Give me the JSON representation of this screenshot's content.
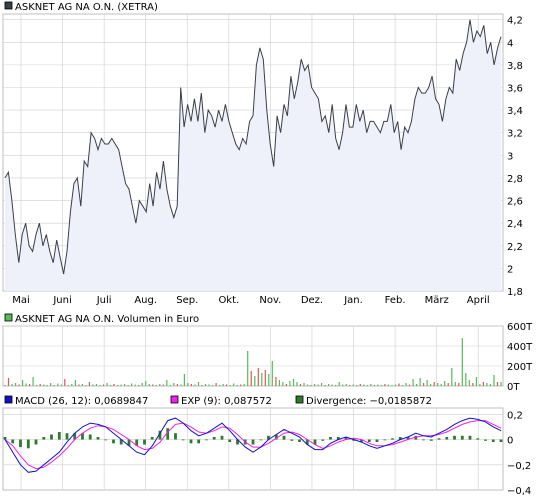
{
  "price_panel": {
    "legend_label": "ASKNET AG NA O.N. (XETRA)",
    "legend_color": "#3a3f4a"
  },
  "volume_panel": {
    "legend_label": "ASKNET AG NA O.N. Volumen in Euro",
    "legend_color": "#55bb55"
  },
  "macd_panel": {
    "legends": [
      {
        "label": "MACD (26, 12): 0,0689847",
        "color": "#1111cc"
      },
      {
        "label": "EXP (9): 0,087572",
        "color": "#ee22ee"
      },
      {
        "label": "Divergence: −0,0185872",
        "color": "#2d7a2d"
      }
    ]
  },
  "colors": {
    "price_line": "#3a3f4a",
    "price_fill": "#eef0fa",
    "grid": "#cfcfcf",
    "vol_up": "#55bb55",
    "vol_down": "#dd5555",
    "macd": "#1111cc",
    "exp": "#ee22ee",
    "divergence": "#2d7a2d"
  },
  "chart_data": [
    {
      "type": "area",
      "title": "ASKNET AG NA O.N. (XETRA)",
      "x_labels": [
        "Mai",
        "Juni",
        "Juli",
        "Aug.",
        "Sep.",
        "Okt.",
        "Nov.",
        "Dez.",
        "Jan.",
        "Feb.",
        "März",
        "April"
      ],
      "y_ticks": [
        "1,8",
        "2",
        "2,2",
        "2,4",
        "2,6",
        "2,8",
        "3",
        "3,2",
        "3,4",
        "3,6",
        "3,8",
        "4",
        "4,2"
      ],
      "ylim": [
        1.8,
        4.25
      ],
      "grid": true,
      "series": [
        {
          "values": [
            2.8,
            2.85,
            2.6,
            2.3,
            2.05,
            2.3,
            2.4,
            2.2,
            2.15,
            2.3,
            2.4,
            2.2,
            2.3,
            2.15,
            2.05,
            2.25,
            2.1,
            1.95,
            2.15,
            2.5,
            2.75,
            2.8,
            2.55,
            2.95,
            2.9,
            3.2,
            3.15,
            3.05,
            3.15,
            3.1,
            3.1,
            3.15,
            3.1,
            3.05,
            2.9,
            2.75,
            2.7,
            2.55,
            2.4,
            2.6,
            2.55,
            2.5,
            2.75,
            2.55,
            2.85,
            2.7,
            2.95,
            2.7,
            2.55,
            2.45,
            2.55,
            3.6,
            3.25,
            3.45,
            3.3,
            3.5,
            3.3,
            3.55,
            3.2,
            3.4,
            3.35,
            3.25,
            3.4,
            3.3,
            3.45,
            3.3,
            3.2,
            3.1,
            3.05,
            3.15,
            3.1,
            3.3,
            3.35,
            3.8,
            3.95,
            3.85,
            3.4,
            3.1,
            2.9,
            3.35,
            3.2,
            3.45,
            3.35,
            3.7,
            3.5,
            3.65,
            3.85,
            3.75,
            3.8,
            3.6,
            3.55,
            3.5,
            3.3,
            3.35,
            3.2,
            3.45,
            3.15,
            3.05,
            3.2,
            3.45,
            3.25,
            3.25,
            3.45,
            3.3,
            3.4,
            3.2,
            3.3,
            3.3,
            3.25,
            3.2,
            3.3,
            3.3,
            3.45,
            3.2,
            3.3,
            3.05,
            3.25,
            3.2,
            3.3,
            3.5,
            3.6,
            3.55,
            3.55,
            3.6,
            3.7,
            3.5,
            3.45,
            3.3,
            3.5,
            3.6,
            3.55,
            3.85,
            3.75,
            3.9,
            4.0,
            4.2,
            4.0,
            4.1,
            4.05,
            4.15,
            3.9,
            4.0,
            3.8,
            3.95,
            4.05
          ]
        }
      ]
    },
    {
      "type": "bar",
      "title": "ASKNET AG NA O.N. Volumen in Euro",
      "y_ticks": [
        "0T",
        "200T",
        "400T",
        "600T"
      ],
      "ylim": [
        0,
        600000
      ],
      "grid": true,
      "series": [
        {
          "name": "Volumen",
          "values": [
            10000,
            80000,
            20000,
            30000,
            15000,
            60000,
            25000,
            20000,
            90000,
            10000,
            20000,
            15000,
            10000,
            30000,
            10000,
            25000,
            15000,
            70000,
            10000,
            20000,
            60000,
            15000,
            20000,
            10000,
            40000,
            15000,
            20000,
            10000,
            15000,
            30000,
            10000,
            20000,
            10000,
            15000,
            20000,
            10000,
            25000,
            15000,
            10000,
            30000,
            50000,
            20000,
            15000,
            10000,
            20000,
            15000,
            60000,
            10000,
            30000,
            20000,
            15000,
            120000,
            30000,
            20000,
            15000,
            40000,
            10000,
            20000,
            15000,
            10000,
            30000,
            10000,
            20000,
            15000,
            10000,
            25000,
            10000,
            15000,
            20000,
            350000,
            150000,
            100000,
            180000,
            130000,
            160000,
            120000,
            250000,
            90000,
            60000,
            40000,
            20000,
            50000,
            70000,
            40000,
            20000,
            30000,
            15000,
            10000,
            20000,
            15000,
            30000,
            10000,
            20000,
            15000,
            10000,
            40000,
            15000,
            20000,
            10000,
            15000,
            10000,
            20000,
            15000,
            10000,
            20000,
            10000,
            15000,
            10000,
            20000,
            15000,
            10000,
            15000,
            25000,
            10000,
            30000,
            15000,
            70000,
            20000,
            80000,
            30000,
            60000,
            20000,
            40000,
            30000,
            20000,
            50000,
            30000,
            180000,
            40000,
            30000,
            480000,
            130000,
            60000,
            30000,
            90000,
            20000,
            40000,
            30000,
            20000,
            110000,
            40000,
            40000
          ],
          "directions": [
            1,
            -1,
            1,
            1,
            -1,
            1,
            1,
            -1,
            1,
            1,
            -1,
            1,
            1,
            1,
            -1,
            1,
            1,
            -1,
            1,
            1,
            1,
            -1,
            1,
            1,
            -1,
            1,
            1,
            1,
            -1,
            1,
            1,
            -1,
            1,
            1,
            1,
            -1,
            1,
            1,
            -1,
            1,
            1,
            1,
            -1,
            1,
            1,
            -1,
            1,
            1,
            1,
            -1,
            1,
            1,
            1,
            -1,
            1,
            1,
            -1,
            1,
            1,
            1,
            -1,
            1,
            1,
            -1,
            1,
            1,
            1,
            -1,
            1,
            1,
            -1,
            1,
            -1,
            1,
            -1,
            1,
            1,
            -1,
            1,
            1,
            -1,
            1,
            1,
            1,
            -1,
            1,
            1,
            -1,
            1,
            1,
            1,
            -1,
            1,
            1,
            -1,
            1,
            1,
            1,
            -1,
            1,
            1,
            -1,
            1,
            1,
            1,
            -1,
            1,
            1,
            -1,
            1,
            1,
            1,
            -1,
            1,
            1,
            -1,
            1,
            1,
            1,
            -1,
            1,
            1,
            -1,
            1,
            1,
            1,
            -1,
            1,
            1,
            -1,
            1,
            1,
            1,
            -1,
            1,
            1,
            -1,
            1,
            1,
            1,
            -1,
            1
          ]
        }
      ]
    },
    {
      "type": "line",
      "title": "MACD",
      "y_ticks": [
        "−0,4",
        "−0,2",
        "0",
        "0,2"
      ],
      "ylim": [
        -0.4,
        0.25
      ],
      "grid": true,
      "series": [
        {
          "name": "MACD (26, 12): 0,0689847",
          "values": [
            0.0,
            -0.1,
            -0.2,
            -0.26,
            -0.25,
            -0.2,
            -0.15,
            -0.1,
            -0.02,
            0.05,
            0.1,
            0.13,
            0.12,
            0.1,
            0.05,
            0.0,
            -0.05,
            -0.1,
            -0.12,
            -0.05,
            0.05,
            0.15,
            0.17,
            0.13,
            0.07,
            0.03,
            0.05,
            0.09,
            0.13,
            0.07,
            0.0,
            -0.06,
            -0.1,
            -0.06,
            0.0,
            0.04,
            0.08,
            0.05,
            0.02,
            -0.04,
            -0.08,
            -0.08,
            -0.03,
            0.0,
            0.02,
            0.0,
            -0.02,
            -0.05,
            -0.07,
            -0.05,
            -0.03,
            0.0,
            0.02,
            0.05,
            0.03,
            0.02,
            0.05,
            0.08,
            0.12,
            0.15,
            0.17,
            0.16,
            0.14,
            0.1,
            0.07
          ]
        },
        {
          "name": "EXP (9): 0,087572",
          "values": [
            0.0,
            -0.05,
            -0.13,
            -0.2,
            -0.23,
            -0.22,
            -0.18,
            -0.13,
            -0.07,
            0.0,
            0.05,
            0.09,
            0.11,
            0.1,
            0.08,
            0.04,
            0.0,
            -0.05,
            -0.08,
            -0.07,
            -0.02,
            0.06,
            0.12,
            0.13,
            0.1,
            0.06,
            0.05,
            0.07,
            0.1,
            0.09,
            0.04,
            -0.02,
            -0.06,
            -0.06,
            -0.03,
            0.01,
            0.05,
            0.06,
            0.04,
            0.0,
            -0.04,
            -0.07,
            -0.05,
            -0.02,
            0.0,
            0.01,
            0.0,
            -0.03,
            -0.05,
            -0.05,
            -0.04,
            -0.02,
            0.0,
            0.02,
            0.03,
            0.03,
            0.04,
            0.06,
            0.09,
            0.12,
            0.14,
            0.15,
            0.15,
            0.12,
            0.09
          ]
        },
        {
          "name": "Divergence: −0,0185872",
          "type": "bar",
          "values": [
            0.02,
            -0.03,
            -0.06,
            -0.07,
            -0.04,
            0.02,
            0.04,
            0.06,
            0.05,
            0.05,
            0.05,
            0.04,
            0.02,
            0.0,
            -0.03,
            -0.04,
            -0.05,
            -0.05,
            -0.04,
            0.02,
            0.07,
            0.09,
            0.05,
            0.0,
            -0.03,
            -0.03,
            0.0,
            0.02,
            0.03,
            -0.02,
            -0.04,
            -0.04,
            -0.04,
            0.0,
            0.03,
            0.04,
            0.03,
            -0.01,
            -0.02,
            -0.04,
            -0.04,
            -0.01,
            0.02,
            0.02,
            0.02,
            -0.01,
            -0.02,
            -0.02,
            -0.02,
            0.0,
            0.01,
            0.02,
            0.02,
            0.03,
            0.0,
            -0.01,
            0.01,
            0.02,
            0.03,
            0.03,
            0.03,
            0.01,
            -0.01,
            -0.02,
            -0.02
          ]
        }
      ]
    }
  ]
}
